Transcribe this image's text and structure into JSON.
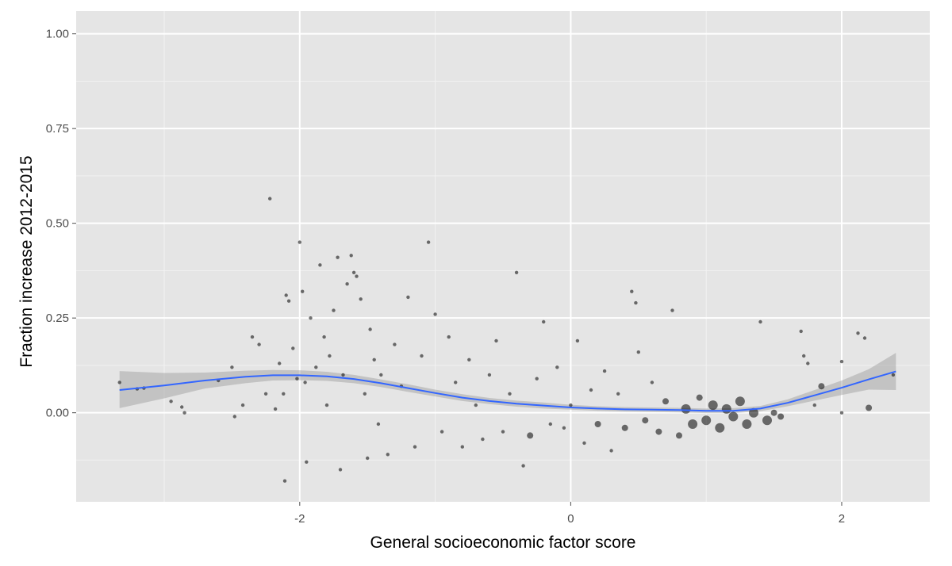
{
  "chart_data": {
    "type": "scatter",
    "title": "",
    "xlabel": "General socioeconomic factor score",
    "ylabel": "Fraction increase 2012-2015",
    "xlim": [
      -3.65,
      2.65
    ],
    "ylim": [
      -0.235,
      1.06
    ],
    "x_ticks": [
      -2,
      0,
      2
    ],
    "x_tick_labels": [
      "-2",
      "0",
      "2"
    ],
    "y_ticks": [
      0.0,
      0.25,
      0.5,
      0.75,
      1.0
    ],
    "y_tick_labels": [
      "0.00",
      "0.25",
      "0.50",
      "0.75",
      "1.00"
    ],
    "grid": true,
    "legend": "none",
    "colors": {
      "panel_background": "#e5e5e5",
      "grid_major": "#ffffff",
      "grid_minor": "#f2f2f2",
      "points": "#000000",
      "smooth_line": "#3366ff",
      "confidence_band": "#999999"
    },
    "smooth": {
      "x": [
        -3.33,
        -3.0,
        -2.7,
        -2.4,
        -2.2,
        -2.0,
        -1.8,
        -1.6,
        -1.4,
        -1.2,
        -1.0,
        -0.8,
        -0.6,
        -0.4,
        -0.2,
        0.0,
        0.2,
        0.4,
        0.6,
        0.8,
        1.0,
        1.2,
        1.4,
        1.6,
        1.8,
        2.0,
        2.2,
        2.4
      ],
      "y": [
        0.06,
        0.072,
        0.085,
        0.095,
        0.099,
        0.099,
        0.096,
        0.089,
        0.078,
        0.065,
        0.052,
        0.04,
        0.031,
        0.024,
        0.019,
        0.014,
        0.011,
        0.009,
        0.008,
        0.007,
        0.005,
        0.005,
        0.011,
        0.026,
        0.046,
        0.066,
        0.088,
        0.109
      ],
      "lower": [
        0.012,
        0.038,
        0.064,
        0.078,
        0.085,
        0.086,
        0.084,
        0.078,
        0.068,
        0.055,
        0.043,
        0.031,
        0.023,
        0.016,
        0.011,
        0.008,
        0.005,
        0.003,
        0.002,
        0.001,
        -0.001,
        -0.001,
        0.004,
        0.017,
        0.032,
        0.047,
        0.061,
        0.06
      ],
      "upper": [
        0.11,
        0.105,
        0.106,
        0.111,
        0.113,
        0.112,
        0.108,
        0.1,
        0.088,
        0.075,
        0.061,
        0.049,
        0.039,
        0.032,
        0.027,
        0.021,
        0.017,
        0.015,
        0.014,
        0.013,
        0.011,
        0.012,
        0.018,
        0.035,
        0.06,
        0.085,
        0.115,
        0.158
      ]
    },
    "points": [
      {
        "x": -3.33,
        "y": 0.08,
        "size": 1
      },
      {
        "x": -3.2,
        "y": 0.063,
        "size": 1
      },
      {
        "x": -3.15,
        "y": 0.065,
        "size": 1
      },
      {
        "x": -2.95,
        "y": 0.03,
        "size": 1
      },
      {
        "x": -2.87,
        "y": 0.015,
        "size": 1
      },
      {
        "x": -2.85,
        "y": 0.0,
        "size": 1
      },
      {
        "x": -2.6,
        "y": 0.085,
        "size": 1
      },
      {
        "x": -2.5,
        "y": 0.12,
        "size": 1
      },
      {
        "x": -2.48,
        "y": -0.01,
        "size": 1
      },
      {
        "x": -2.42,
        "y": 0.02,
        "size": 1
      },
      {
        "x": -2.35,
        "y": 0.2,
        "size": 1
      },
      {
        "x": -2.3,
        "y": 0.18,
        "size": 1
      },
      {
        "x": -2.25,
        "y": 0.05,
        "size": 1
      },
      {
        "x": -2.22,
        "y": 0.565,
        "size": 1
      },
      {
        "x": -2.18,
        "y": 0.01,
        "size": 1
      },
      {
        "x": -2.15,
        "y": 0.13,
        "size": 1
      },
      {
        "x": -2.12,
        "y": 0.05,
        "size": 1
      },
      {
        "x": -2.1,
        "y": 0.31,
        "size": 1
      },
      {
        "x": -2.08,
        "y": 0.295,
        "size": 1
      },
      {
        "x": -2.05,
        "y": 0.17,
        "size": 1
      },
      {
        "x": -2.02,
        "y": 0.09,
        "size": 1
      },
      {
        "x": -2.0,
        "y": 0.45,
        "size": 1
      },
      {
        "x": -1.98,
        "y": 0.32,
        "size": 1
      },
      {
        "x": -1.96,
        "y": 0.08,
        "size": 1
      },
      {
        "x": -1.95,
        "y": -0.13,
        "size": 1
      },
      {
        "x": -2.11,
        "y": -0.18,
        "size": 1
      },
      {
        "x": -1.92,
        "y": 0.25,
        "size": 1
      },
      {
        "x": -1.88,
        "y": 0.12,
        "size": 1
      },
      {
        "x": -1.85,
        "y": 0.39,
        "size": 1
      },
      {
        "x": -1.82,
        "y": 0.2,
        "size": 1
      },
      {
        "x": -1.8,
        "y": 0.02,
        "size": 1
      },
      {
        "x": -1.78,
        "y": 0.15,
        "size": 1
      },
      {
        "x": -1.75,
        "y": 0.27,
        "size": 1
      },
      {
        "x": -1.72,
        "y": 0.41,
        "size": 1
      },
      {
        "x": -1.7,
        "y": -0.15,
        "size": 1
      },
      {
        "x": -1.68,
        "y": 0.1,
        "size": 1
      },
      {
        "x": -1.65,
        "y": 0.34,
        "size": 1
      },
      {
        "x": -1.62,
        "y": 0.415,
        "size": 1
      },
      {
        "x": -1.6,
        "y": 0.37,
        "size": 1
      },
      {
        "x": -1.58,
        "y": 0.36,
        "size": 1
      },
      {
        "x": -1.55,
        "y": 0.3,
        "size": 1
      },
      {
        "x": -1.52,
        "y": 0.05,
        "size": 1
      },
      {
        "x": -1.5,
        "y": -0.12,
        "size": 1
      },
      {
        "x": -1.48,
        "y": 0.22,
        "size": 1
      },
      {
        "x": -1.45,
        "y": 0.14,
        "size": 1
      },
      {
        "x": -1.42,
        "y": -0.03,
        "size": 1
      },
      {
        "x": -1.4,
        "y": 0.1,
        "size": 1
      },
      {
        "x": -1.35,
        "y": -0.11,
        "size": 1
      },
      {
        "x": -1.3,
        "y": 0.18,
        "size": 1
      },
      {
        "x": -1.25,
        "y": 0.07,
        "size": 1
      },
      {
        "x": -1.2,
        "y": 0.305,
        "size": 1
      },
      {
        "x": -1.15,
        "y": -0.09,
        "size": 1
      },
      {
        "x": -1.1,
        "y": 0.15,
        "size": 1
      },
      {
        "x": -1.05,
        "y": 0.45,
        "size": 1
      },
      {
        "x": -1.0,
        "y": 0.26,
        "size": 1
      },
      {
        "x": -0.95,
        "y": -0.05,
        "size": 1
      },
      {
        "x": -0.9,
        "y": 0.2,
        "size": 1
      },
      {
        "x": -0.85,
        "y": 0.08,
        "size": 1
      },
      {
        "x": -0.8,
        "y": -0.09,
        "size": 1
      },
      {
        "x": -0.75,
        "y": 0.14,
        "size": 1
      },
      {
        "x": -0.7,
        "y": 0.02,
        "size": 1
      },
      {
        "x": -0.65,
        "y": -0.07,
        "size": 1
      },
      {
        "x": -0.6,
        "y": 0.1,
        "size": 1
      },
      {
        "x": -0.55,
        "y": 0.19,
        "size": 1
      },
      {
        "x": -0.5,
        "y": -0.05,
        "size": 1
      },
      {
        "x": -0.45,
        "y": 0.05,
        "size": 1
      },
      {
        "x": -0.4,
        "y": 0.37,
        "size": 1
      },
      {
        "x": -0.35,
        "y": -0.14,
        "size": 1
      },
      {
        "x": -0.3,
        "y": -0.06,
        "size": 2
      },
      {
        "x": -0.25,
        "y": 0.09,
        "size": 1
      },
      {
        "x": -0.2,
        "y": 0.24,
        "size": 1
      },
      {
        "x": -0.15,
        "y": -0.03,
        "size": 1
      },
      {
        "x": -0.1,
        "y": 0.12,
        "size": 1
      },
      {
        "x": -0.05,
        "y": -0.04,
        "size": 1
      },
      {
        "x": 0.0,
        "y": 0.02,
        "size": 1
      },
      {
        "x": 0.05,
        "y": 0.19,
        "size": 1
      },
      {
        "x": 0.1,
        "y": -0.08,
        "size": 1
      },
      {
        "x": 0.15,
        "y": 0.06,
        "size": 1
      },
      {
        "x": 0.2,
        "y": -0.03,
        "size": 2
      },
      {
        "x": 0.25,
        "y": 0.11,
        "size": 1
      },
      {
        "x": 0.3,
        "y": -0.1,
        "size": 1
      },
      {
        "x": 0.35,
        "y": 0.05,
        "size": 1
      },
      {
        "x": 0.4,
        "y": -0.04,
        "size": 2
      },
      {
        "x": 0.45,
        "y": 0.32,
        "size": 1
      },
      {
        "x": 0.48,
        "y": 0.29,
        "size": 1
      },
      {
        "x": 0.5,
        "y": 0.16,
        "size": 1
      },
      {
        "x": 0.55,
        "y": -0.02,
        "size": 2
      },
      {
        "x": 0.6,
        "y": 0.08,
        "size": 1
      },
      {
        "x": 0.65,
        "y": -0.05,
        "size": 2
      },
      {
        "x": 0.7,
        "y": 0.03,
        "size": 2
      },
      {
        "x": 0.75,
        "y": 0.27,
        "size": 1
      },
      {
        "x": 0.8,
        "y": -0.06,
        "size": 2
      },
      {
        "x": 0.85,
        "y": 0.01,
        "size": 3
      },
      {
        "x": 0.9,
        "y": -0.03,
        "size": 3
      },
      {
        "x": 0.95,
        "y": 0.04,
        "size": 2
      },
      {
        "x": 1.0,
        "y": -0.02,
        "size": 3
      },
      {
        "x": 1.05,
        "y": 0.02,
        "size": 3
      },
      {
        "x": 1.1,
        "y": -0.04,
        "size": 3
      },
      {
        "x": 1.15,
        "y": 0.01,
        "size": 3
      },
      {
        "x": 1.2,
        "y": -0.01,
        "size": 3
      },
      {
        "x": 1.25,
        "y": 0.03,
        "size": 3
      },
      {
        "x": 1.3,
        "y": -0.03,
        "size": 3
      },
      {
        "x": 1.35,
        "y": 0.0,
        "size": 3
      },
      {
        "x": 1.4,
        "y": 0.24,
        "size": 1
      },
      {
        "x": 1.45,
        "y": -0.02,
        "size": 3
      },
      {
        "x": 1.5,
        "y": 0.0,
        "size": 2
      },
      {
        "x": 1.55,
        "y": -0.01,
        "size": 2
      },
      {
        "x": 1.7,
        "y": 0.215,
        "size": 1
      },
      {
        "x": 1.72,
        "y": 0.15,
        "size": 1
      },
      {
        "x": 1.75,
        "y": 0.13,
        "size": 1
      },
      {
        "x": 1.8,
        "y": 0.02,
        "size": 1
      },
      {
        "x": 1.85,
        "y": 0.07,
        "size": 2
      },
      {
        "x": 2.0,
        "y": 0.135,
        "size": 1
      },
      {
        "x": 2.0,
        "y": 0.0,
        "size": 1
      },
      {
        "x": 2.12,
        "y": 0.21,
        "size": 1
      },
      {
        "x": 2.17,
        "y": 0.197,
        "size": 1
      },
      {
        "x": 2.2,
        "y": 0.013,
        "size": 2
      },
      {
        "x": 2.38,
        "y": 0.1,
        "size": 1
      }
    ]
  }
}
